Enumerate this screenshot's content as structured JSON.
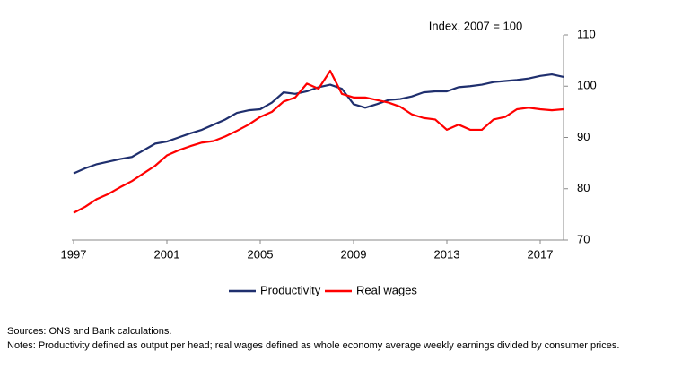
{
  "chart_data": {
    "type": "line",
    "y_label": "Index, 2007 = 100",
    "x": [
      1997,
      1997.5,
      1998,
      1998.5,
      1999,
      1999.5,
      2000,
      2000.5,
      2001,
      2001.5,
      2002,
      2002.5,
      2003,
      2003.5,
      2004,
      2004.5,
      2005,
      2005.5,
      2006,
      2006.5,
      2007,
      2007.5,
      2008,
      2008.5,
      2009,
      2009.5,
      2010,
      2010.5,
      2011,
      2011.5,
      2012,
      2012.5,
      2013,
      2013.5,
      2014,
      2014.5,
      2015,
      2015.5,
      2016,
      2016.5,
      2017,
      2017.5,
      2018
    ],
    "series": [
      {
        "name": "Productivity",
        "color": "#1f2f6e",
        "values": [
          83,
          84,
          84.8,
          85.3,
          85.8,
          86.2,
          87.5,
          88.8,
          89.2,
          90,
          90.8,
          91.5,
          92.5,
          93.5,
          94.8,
          95.3,
          95.5,
          96.8,
          98.8,
          98.5,
          99,
          99.8,
          100.3,
          99.5,
          96.5,
          95.8,
          96.5,
          97.3,
          97.5,
          98,
          98.8,
          99,
          99,
          99.8,
          100,
          100.3,
          100.8,
          101,
          101.2,
          101.5,
          102,
          102.3,
          101.8
        ]
      },
      {
        "name": "Real wages",
        "color": "#ff0000",
        "values": [
          75.3,
          76.5,
          78,
          79,
          80.3,
          81.5,
          83,
          84.5,
          86.5,
          87.5,
          88.3,
          89,
          89.3,
          90.2,
          91.3,
          92.5,
          94,
          95,
          97,
          97.8,
          100.5,
          99.5,
          103,
          98.5,
          97.8,
          97.8,
          97.3,
          96.8,
          96,
          94.5,
          93.8,
          93.5,
          91.5,
          92.5,
          91.5,
          91.5,
          93.5,
          94,
          95.5,
          95.8,
          95.5,
          95.3,
          95.5
        ]
      }
    ],
    "xlim": [
      1997,
      2018
    ],
    "xticks": [
      1997,
      2001,
      2005,
      2009,
      2013,
      2017
    ],
    "ylim": [
      70,
      110
    ],
    "yticks": [
      70,
      80,
      90,
      100,
      110
    ],
    "footnotes": [
      "Sources:  ONS and Bank calculations.",
      "Notes:  Productivity defined as output per head; real wages defined as whole economy average weekly earnings divided by consumer prices."
    ]
  }
}
